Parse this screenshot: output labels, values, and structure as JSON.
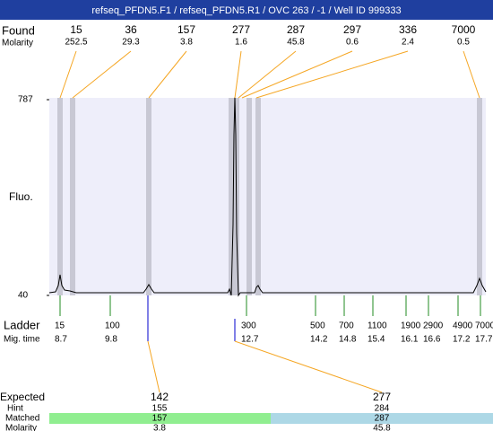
{
  "chart_data": {
    "type": "electropherogram",
    "title": "refseq_PFDN5.F1 / refseq_PFDN5.R1 / OVC 263 / -1 / Well ID 999333",
    "found": {
      "label": "Found",
      "values": [
        15,
        36,
        157,
        277,
        287,
        297,
        336,
        7000
      ]
    },
    "molarity": {
      "label": "Molarity",
      "values": [
        252.5,
        29.3,
        3.8,
        1.6,
        45.8,
        0.6,
        2.4,
        0.5
      ]
    },
    "y_label": "Fluo.",
    "ylim": [
      40,
      787
    ],
    "yticks": [
      40,
      787
    ],
    "ladder": {
      "label": "Ladder",
      "sizes": [
        15,
        100,
        300,
        500,
        700,
        1100,
        1900,
        2900,
        4900,
        7000
      ]
    },
    "mig_time": {
      "label": "Mig. time",
      "values": [
        8.7,
        9.8,
        12.7,
        14.2,
        14.8,
        15.4,
        16.1,
        16.6,
        17.2,
        17.7
      ]
    },
    "expected": {
      "label": "Expected",
      "values": [
        142,
        277
      ]
    },
    "hint": {
      "label": "Hint",
      "values": [
        155,
        284
      ]
    },
    "matched": {
      "label": "Matched",
      "values": [
        157,
        287
      ]
    },
    "expected_molarity": {
      "label": "Molarity",
      "values": [
        3.8,
        45.8
      ]
    }
  }
}
